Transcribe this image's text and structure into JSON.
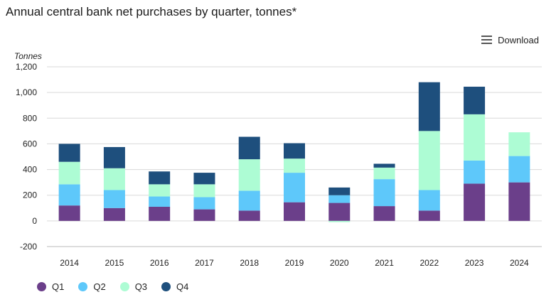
{
  "title": "Annual central bank net purchases by quarter, tonnes*",
  "download_label": "Download",
  "colors": {
    "Q1": "#6b3f8a",
    "Q2": "#5ec8fa",
    "Q3": "#adfcd4",
    "Q4": "#1e4f7d",
    "grid": "#d9d9d9"
  },
  "chart_data": {
    "type": "bar",
    "stacked": true,
    "ylabel": "Tonnes",
    "ylim": [
      -200,
      1200
    ],
    "yticks": [
      -200,
      0,
      200,
      400,
      600,
      800,
      "1,000",
      "1,200"
    ],
    "categories": [
      "2014",
      "2015",
      "2016",
      "2017",
      "2018",
      "2019",
      "2020",
      "2021",
      "2022",
      "2023",
      "2024"
    ],
    "series": [
      {
        "name": "Q1",
        "values": [
          120,
          100,
          110,
          90,
          80,
          145,
          140,
          115,
          80,
          290,
          300
        ]
      },
      {
        "name": "Q2",
        "values": [
          165,
          140,
          80,
          95,
          155,
          230,
          60,
          210,
          160,
          180,
          205
        ]
      },
      {
        "name": "Q3",
        "values": [
          175,
          170,
          95,
          100,
          245,
          110,
          -10,
          90,
          460,
          360,
          185
        ]
      },
      {
        "name": "Q4",
        "values": [
          140,
          165,
          100,
          90,
          175,
          120,
          60,
          30,
          380,
          215,
          0
        ]
      }
    ],
    "legend_position": "bottom-left",
    "grid": true
  }
}
